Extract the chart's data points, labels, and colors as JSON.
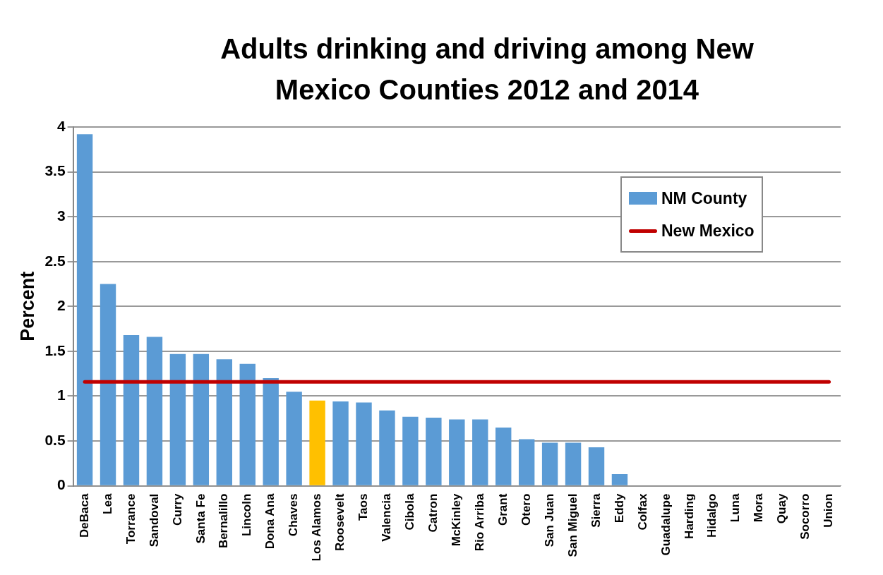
{
  "chart_data": {
    "type": "bar",
    "title": "Adults drinking and driving among New Mexico Counties 2012 and 2014",
    "ylabel": "Percent",
    "categories": [
      "DeBaca",
      "Lea",
      "Torrance",
      "Sandoval",
      "Curry",
      "Santa Fe",
      "Bernalillo",
      "Lincoln",
      "Dona Ana",
      "Chaves",
      "Los Alamos",
      "Roosevelt",
      "Taos",
      "Valencia",
      "Cibola",
      "Catron",
      "McKinley",
      "Rio Arriba",
      "Grant",
      "Otero",
      "San Juan",
      "San Miguel",
      "Sierra",
      "Eddy",
      "Colfax",
      "Guadalupe",
      "Harding",
      "Hidalgo",
      "Luna",
      "Mora",
      "Quay",
      "Socorro",
      "Union"
    ],
    "series": [
      {
        "name": "NM County",
        "color": "#5b9bd5",
        "colors": [
          "#5b9bd5",
          "#5b9bd5",
          "#5b9bd5",
          "#5b9bd5",
          "#5b9bd5",
          "#5b9bd5",
          "#5b9bd5",
          "#5b9bd5",
          "#5b9bd5",
          "#5b9bd5",
          "#ffc000",
          "#5b9bd5",
          "#5b9bd5",
          "#5b9bd5",
          "#5b9bd5",
          "#5b9bd5",
          "#5b9bd5",
          "#5b9bd5",
          "#5b9bd5",
          "#5b9bd5",
          "#5b9bd5",
          "#5b9bd5",
          "#5b9bd5",
          "#5b9bd5",
          "#5b9bd5",
          "#5b9bd5",
          "#5b9bd5",
          "#5b9bd5",
          "#5b9bd5",
          "#5b9bd5",
          "#5b9bd5",
          "#5b9bd5",
          "#5b9bd5"
        ],
        "values": [
          3.92,
          2.25,
          1.68,
          1.66,
          1.47,
          1.47,
          1.41,
          1.36,
          1.2,
          1.05,
          0.95,
          0.94,
          0.93,
          0.84,
          0.77,
          0.76,
          0.74,
          0.74,
          0.65,
          0.52,
          0.48,
          0.48,
          0.43,
          0.13,
          0,
          0,
          0,
          0,
          0,
          0,
          0,
          0,
          0
        ]
      },
      {
        "name": "New Mexico",
        "type": "line",
        "color": "#c00000",
        "values": [
          1.16,
          1.16,
          1.16,
          1.16,
          1.16,
          1.16,
          1.16,
          1.16,
          1.16,
          1.16,
          1.16,
          1.16,
          1.16,
          1.16,
          1.16,
          1.16,
          1.16,
          1.16,
          1.16,
          1.16,
          1.16,
          1.16,
          1.16,
          1.16,
          1.16,
          1.16,
          1.16,
          1.16,
          1.16,
          1.16,
          1.16,
          1.16,
          1.16
        ]
      }
    ],
    "ylim": [
      0,
      4
    ],
    "yticks": [
      0,
      0.5,
      1,
      1.5,
      2,
      2.5,
      3,
      3.5,
      4
    ],
    "grid": "y",
    "legend": "top right",
    "marker": "none",
    "line_style": "solid"
  }
}
